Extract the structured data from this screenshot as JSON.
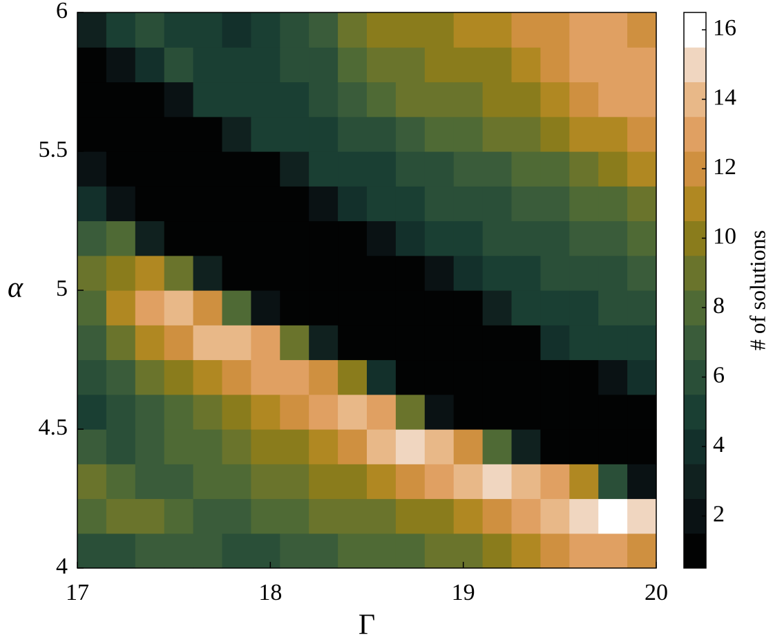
{
  "chart_data": {
    "type": "heatmap",
    "x_label": "Γ",
    "y_label": "α",
    "colorbar_label": "# of solutions",
    "xlim": [
      17,
      20
    ],
    "ylim": [
      4,
      6
    ],
    "xticks": [
      17,
      18,
      19,
      20
    ],
    "yticks": [
      4,
      4.5,
      5,
      5.5,
      6
    ],
    "clim": [
      0.5,
      16.5
    ],
    "cticks": [
      2,
      4,
      6,
      8,
      10,
      12,
      14,
      16
    ],
    "colormap": [
      "#020303",
      "#0a1214",
      "#10211f",
      "#13302b",
      "#1a3f33",
      "#2a4f38",
      "#3a5c3a",
      "#4f6a35",
      "#6a742c",
      "#8a7c1c",
      "#b08822",
      "#cf9040",
      "#e0a062",
      "#e8b888",
      "#f0d6c0",
      "#ffffff"
    ],
    "x": [
      17.075,
      17.225,
      17.375,
      17.525,
      17.675,
      17.825,
      17.975,
      18.125,
      18.275,
      18.425,
      18.575,
      18.725,
      18.875,
      19.025,
      19.175,
      19.325,
      19.475,
      19.625,
      19.775,
      19.925
    ],
    "y": [
      4.0625,
      4.1875,
      4.3125,
      4.4375,
      4.5625,
      4.6875,
      4.8125,
      4.9375,
      5.0625,
      5.1875,
      5.3125,
      5.4375,
      5.5625,
      5.6875,
      5.8125,
      5.9375
    ],
    "values": [
      [
        6,
        6,
        7,
        7,
        7,
        6,
        6,
        7,
        7,
        8,
        8,
        8,
        9,
        9,
        10,
        11,
        12,
        13,
        13,
        12
      ],
      [
        8,
        9,
        9,
        8,
        7,
        7,
        8,
        8,
        9,
        9,
        9,
        10,
        10,
        11,
        12,
        13,
        14,
        15,
        16,
        15
      ],
      [
        9,
        8,
        7,
        7,
        8,
        8,
        9,
        9,
        10,
        10,
        11,
        12,
        13,
        14,
        15,
        14,
        13,
        11,
        6,
        2
      ],
      [
        7,
        6,
        7,
        8,
        8,
        9,
        10,
        10,
        11,
        12,
        14,
        15,
        14,
        12,
        8,
        3,
        1,
        1,
        1,
        1
      ],
      [
        5,
        6,
        7,
        8,
        9,
        10,
        11,
        12,
        13,
        14,
        13,
        9,
        2,
        1,
        1,
        1,
        1,
        1,
        1,
        1
      ],
      [
        6,
        7,
        9,
        10,
        11,
        12,
        13,
        13,
        12,
        10,
        4,
        1,
        1,
        1,
        1,
        1,
        1,
        1,
        2,
        4
      ],
      [
        7,
        9,
        11,
        12,
        14,
        14,
        13,
        9,
        3,
        1,
        1,
        1,
        1,
        1,
        1,
        1,
        4,
        5,
        5,
        5
      ],
      [
        8,
        11,
        13,
        14,
        12,
        8,
        2,
        1,
        1,
        1,
        1,
        1,
        1,
        1,
        3,
        5,
        5,
        5,
        6,
        6
      ],
      [
        9,
        10,
        11,
        9,
        3,
        1,
        1,
        1,
        1,
        1,
        1,
        1,
        2,
        4,
        5,
        5,
        6,
        6,
        6,
        7
      ],
      [
        7,
        8,
        3,
        1,
        1,
        1,
        1,
        1,
        1,
        1,
        2,
        4,
        5,
        5,
        6,
        6,
        6,
        7,
        7,
        8
      ],
      [
        4,
        2,
        1,
        1,
        1,
        1,
        1,
        1,
        2,
        4,
        5,
        5,
        6,
        6,
        6,
        7,
        7,
        8,
        8,
        9
      ],
      [
        2,
        1,
        1,
        1,
        1,
        1,
        1,
        3,
        5,
        5,
        5,
        6,
        6,
        7,
        7,
        8,
        8,
        9,
        10,
        11
      ],
      [
        1,
        1,
        1,
        1,
        1,
        3,
        5,
        5,
        5,
        6,
        6,
        7,
        8,
        8,
        9,
        9,
        10,
        11,
        11,
        12
      ],
      [
        1,
        1,
        1,
        2,
        5,
        5,
        5,
        5,
        6,
        7,
        8,
        9,
        9,
        9,
        10,
        10,
        11,
        12,
        13,
        13
      ],
      [
        1,
        2,
        4,
        6,
        5,
        5,
        5,
        6,
        6,
        8,
        9,
        9,
        10,
        10,
        10,
        11,
        12,
        13,
        13,
        13
      ],
      [
        3,
        5,
        6,
        5,
        5,
        4,
        5,
        6,
        7,
        9,
        10,
        10,
        10,
        11,
        11,
        12,
        12,
        13,
        13,
        12
      ]
    ]
  }
}
